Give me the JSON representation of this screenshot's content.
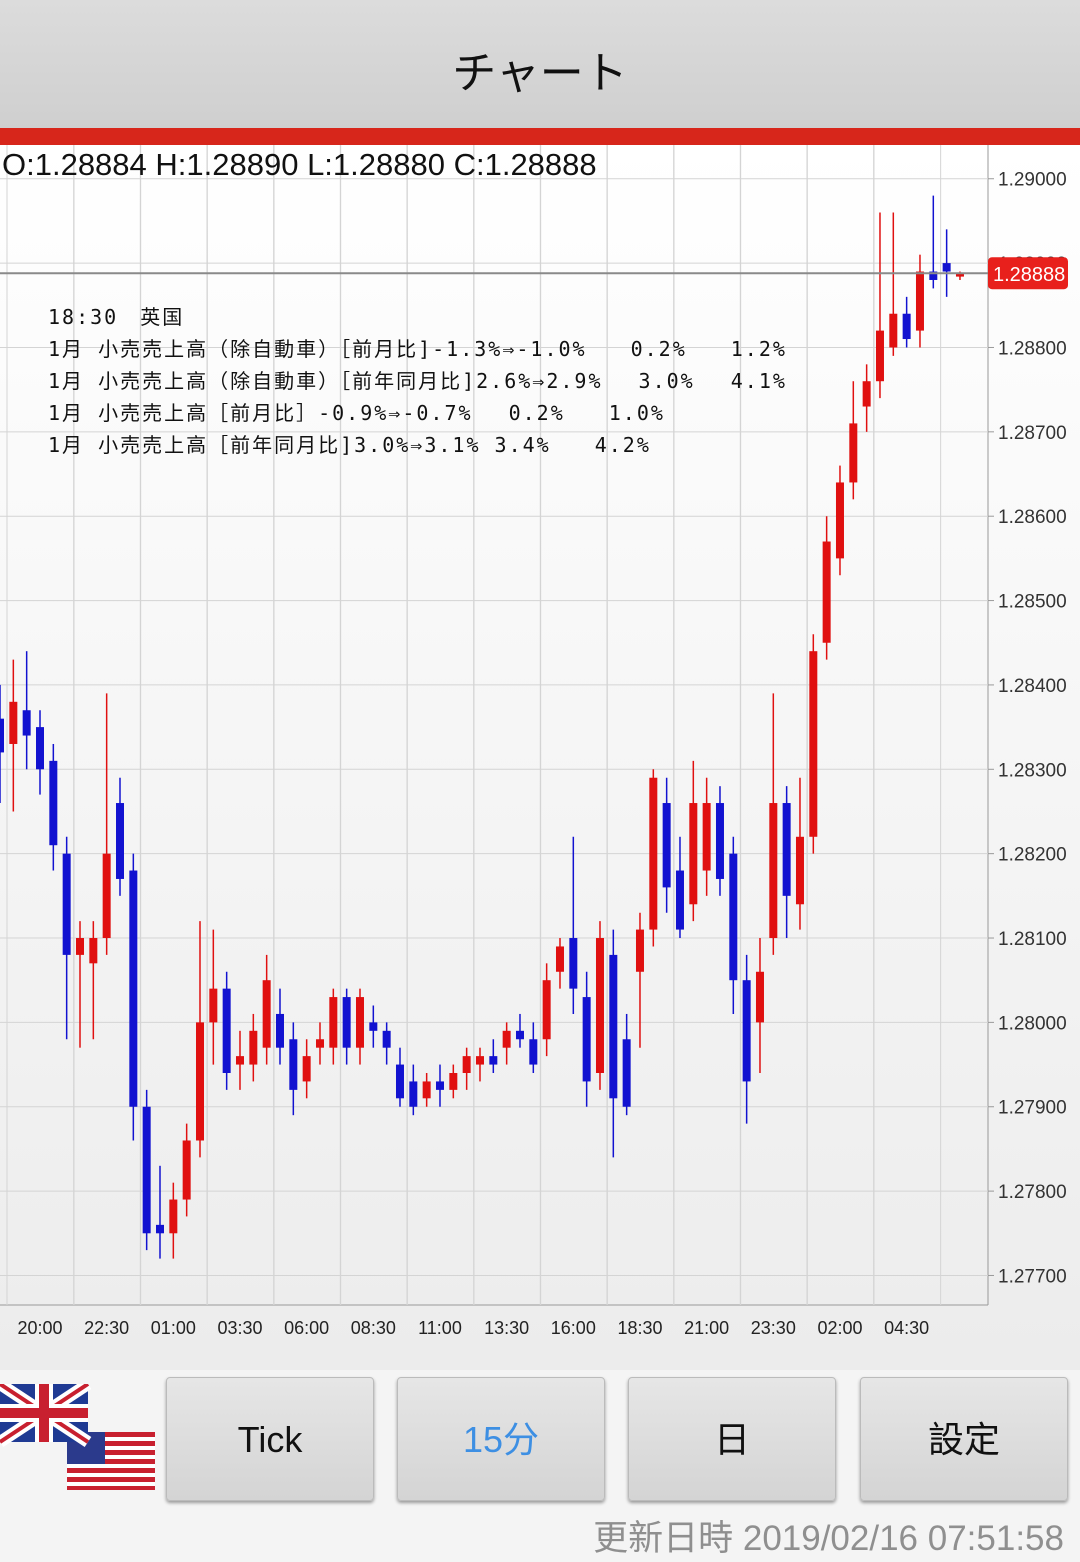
{
  "header": {
    "title": "チャート"
  },
  "chart_data": {
    "type": "candlestick",
    "ohlc_label": "O:1.28884 H:1.28890 L:1.28880 C:1.28888",
    "last_price": 1.28888,
    "up_color": "#e01010",
    "down_color": "#1212d0",
    "grid": true,
    "ylim": [
      1.27665,
      1.2904
    ],
    "yticks": [
      {
        "value": 1.29,
        "label": "1.29000"
      },
      {
        "value": 1.289,
        "label": "1.28900"
      },
      {
        "value": 1.288,
        "label": "1.28800"
      },
      {
        "value": 1.287,
        "label": "1.28700"
      },
      {
        "value": 1.286,
        "label": "1.28600"
      },
      {
        "value": 1.285,
        "label": "1.28500"
      },
      {
        "value": 1.284,
        "label": "1.28400"
      },
      {
        "value": 1.283,
        "label": "1.28300"
      },
      {
        "value": 1.282,
        "label": "1.28200"
      },
      {
        "value": 1.281,
        "label": "1.28100"
      },
      {
        "value": 1.28,
        "label": "1.28000"
      },
      {
        "value": 1.279,
        "label": "1.27900"
      },
      {
        "value": 1.278,
        "label": "1.27800"
      },
      {
        "value": 1.277,
        "label": "1.27700"
      }
    ],
    "categories": [
      null,
      null,
      null,
      "20:00",
      null,
      null,
      null,
      null,
      "22:30",
      null,
      null,
      null,
      null,
      "01:00",
      null,
      null,
      null,
      null,
      "03:30",
      null,
      null,
      null,
      null,
      "06:00",
      null,
      null,
      null,
      null,
      "08:30",
      null,
      null,
      null,
      null,
      "11:00",
      null,
      null,
      null,
      null,
      "13:30",
      null,
      null,
      null,
      null,
      "16:00",
      null,
      null,
      null,
      null,
      "18:30",
      null,
      null,
      null,
      null,
      "21:00",
      null,
      null,
      null,
      null,
      "23:30",
      null,
      null,
      null,
      null,
      "02:00",
      null,
      null,
      null,
      null,
      "04:30",
      null,
      null,
      null,
      null
    ],
    "open": [
      1.2836,
      1.2833,
      1.2837,
      1.2835,
      1.2831,
      1.282,
      1.2808,
      1.2807,
      1.281,
      1.2826,
      1.2818,
      1.279,
      1.2776,
      1.2775,
      1.2779,
      1.2786,
      1.28,
      1.2804,
      1.2795,
      1.2795,
      1.2797,
      1.2801,
      1.2798,
      1.2793,
      1.2797,
      1.2797,
      1.2803,
      1.2797,
      1.28,
      1.2799,
      1.2795,
      1.2793,
      1.2791,
      1.2793,
      1.2792,
      1.2794,
      1.2795,
      1.2796,
      1.2797,
      1.2799,
      1.2798,
      1.2798,
      1.2806,
      1.281,
      1.2803,
      1.2794,
      1.2808,
      1.2798,
      1.2806,
      1.2811,
      1.2826,
      1.2818,
      1.2814,
      1.2818,
      1.2826,
      1.282,
      1.2805,
      1.28,
      1.281,
      1.2826,
      1.2814,
      1.2822,
      1.2845,
      1.2855,
      1.2864,
      1.2873,
      1.2876,
      1.288,
      1.2884,
      1.2882,
      1.2889,
      1.289,
      1.28884
    ],
    "high": [
      1.284,
      1.2843,
      1.2844,
      1.2837,
      1.2833,
      1.2822,
      1.2812,
      1.2812,
      1.2839,
      1.2829,
      1.282,
      1.2792,
      1.2783,
      1.2781,
      1.2788,
      1.2812,
      1.2811,
      1.2806,
      1.2799,
      1.2801,
      1.2808,
      1.2804,
      1.28,
      1.2798,
      1.28,
      1.2804,
      1.2804,
      1.2804,
      1.2802,
      1.28,
      1.2797,
      1.2795,
      1.2794,
      1.2795,
      1.2795,
      1.2797,
      1.2797,
      1.2798,
      1.28,
      1.2801,
      1.28,
      1.2807,
      1.281,
      1.2822,
      1.2806,
      1.2812,
      1.2811,
      1.2801,
      1.2813,
      1.283,
      1.2829,
      1.2822,
      1.2831,
      1.2829,
      1.2828,
      1.2822,
      1.2808,
      1.281,
      1.2839,
      1.2828,
      1.2829,
      1.2846,
      1.286,
      1.2866,
      1.2876,
      1.2878,
      1.2896,
      1.2896,
      1.2886,
      1.2891,
      1.2898,
      1.2894,
      1.2889
    ],
    "low": [
      1.2826,
      1.2825,
      1.283,
      1.2827,
      1.2818,
      1.2798,
      1.2797,
      1.2798,
      1.2808,
      1.2815,
      1.2786,
      1.2773,
      1.2772,
      1.2772,
      1.2777,
      1.2784,
      1.2795,
      1.2792,
      1.2792,
      1.2793,
      1.2795,
      1.2795,
      1.2789,
      1.2791,
      1.2795,
      1.2795,
      1.2795,
      1.2795,
      1.2797,
      1.2795,
      1.279,
      1.2789,
      1.279,
      1.279,
      1.2791,
      1.2792,
      1.2793,
      1.2794,
      1.2795,
      1.2797,
      1.2794,
      1.2796,
      1.2804,
      1.2801,
      1.279,
      1.2792,
      1.2784,
      1.2789,
      1.2797,
      1.2809,
      1.2813,
      1.281,
      1.2812,
      1.2815,
      1.2815,
      1.2801,
      1.2788,
      1.2794,
      1.2808,
      1.281,
      1.2811,
      1.282,
      1.2843,
      1.2853,
      1.2862,
      1.287,
      1.2874,
      1.2879,
      1.288,
      1.288,
      1.2887,
      1.2886,
      1.2888
    ],
    "close": [
      1.2832,
      1.2838,
      1.2834,
      1.283,
      1.2821,
      1.2808,
      1.281,
      1.281,
      1.282,
      1.2817,
      1.279,
      1.2775,
      1.2775,
      1.2779,
      1.2786,
      1.28,
      1.2804,
      1.2794,
      1.2796,
      1.2799,
      1.2805,
      1.2797,
      1.2792,
      1.2796,
      1.2798,
      1.2803,
      1.2797,
      1.2803,
      1.2799,
      1.2797,
      1.2791,
      1.279,
      1.2793,
      1.2792,
      1.2794,
      1.2796,
      1.2796,
      1.2795,
      1.2799,
      1.2798,
      1.2795,
      1.2805,
      1.2809,
      1.2804,
      1.2793,
      1.281,
      1.2791,
      1.279,
      1.2811,
      1.2829,
      1.2816,
      1.2811,
      1.2826,
      1.2826,
      1.2817,
      1.2805,
      1.2793,
      1.2806,
      1.2826,
      1.2815,
      1.2822,
      1.2844,
      1.2857,
      1.2864,
      1.2871,
      1.2876,
      1.2882,
      1.2884,
      1.2881,
      1.2889,
      1.2888,
      1.2889,
      1.28888
    ]
  },
  "news": [
    "18:30　英国",
    "1月 小売売上高（除自動車）［前月比]-1.3%⇒-1.0%　　0.2%　　1.2%",
    "1月 小売売上高（除自動車）［前年同月比]2.6%⇒2.9%　 3.0%　 4.1%",
    "1月 小売売上高［前月比］-0.9%⇒-0.7%　 0.2%　　1.0%",
    "1月 小売売上高［前年同月比]3.0%⇒3.1% 3.4%　　4.2%"
  ],
  "buttons": [
    "Tick",
    "15分",
    "日",
    "設定"
  ],
  "footer": {
    "updated": "更新日時 2019/02/16 07:51:58"
  }
}
